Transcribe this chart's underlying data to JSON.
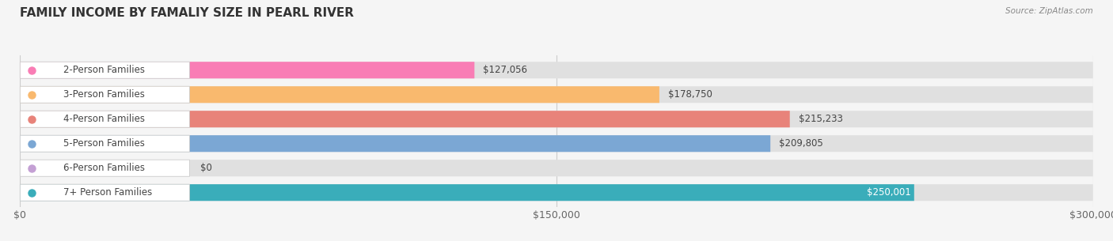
{
  "title": "FAMILY INCOME BY FAMALIY SIZE IN PEARL RIVER",
  "source": "Source: ZipAtlas.com",
  "categories": [
    "2-Person Families",
    "3-Person Families",
    "4-Person Families",
    "5-Person Families",
    "6-Person Families",
    "7+ Person Families"
  ],
  "values": [
    127056,
    178750,
    215233,
    209805,
    0,
    250001
  ],
  "bar_colors": [
    "#F97DB5",
    "#F9B96E",
    "#E8837A",
    "#7BA7D4",
    "#C4A0D4",
    "#3AADBA"
  ],
  "value_labels": [
    "$127,056",
    "$178,750",
    "$215,233",
    "$209,805",
    "$0",
    "$250,001"
  ],
  "xlim": [
    0,
    300000
  ],
  "xticks": [
    0,
    150000,
    300000
  ],
  "xtick_labels": [
    "$0",
    "$150,000",
    "$300,000"
  ],
  "background_color": "#f5f5f5",
  "title_fontsize": 11,
  "tick_fontsize": 9,
  "label_fontsize": 8.5,
  "value_fontsize": 8.5
}
